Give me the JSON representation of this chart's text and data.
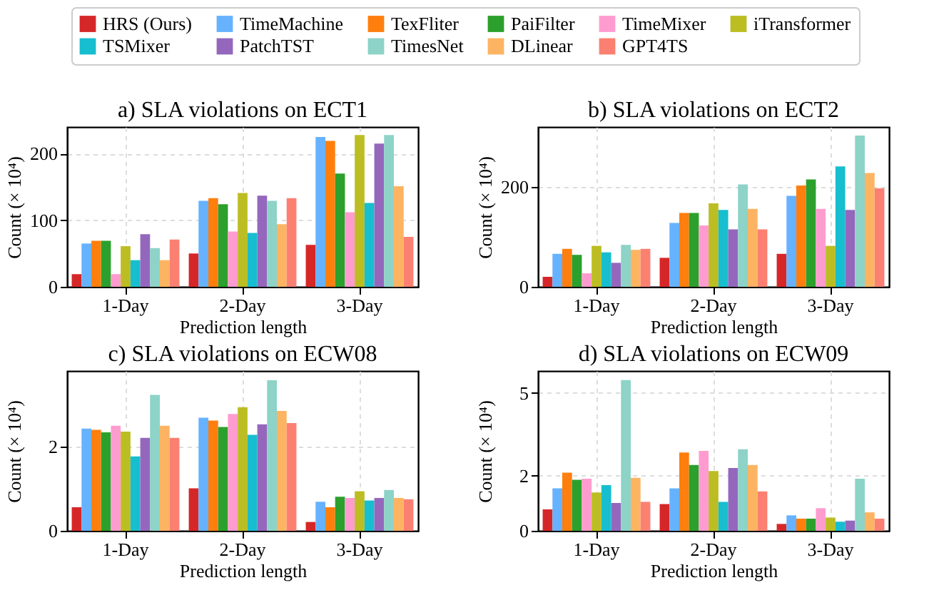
{
  "chart_data": [
    {
      "type": "bar",
      "title": "a) SLA violations on ECT1",
      "xlabel": "Prediction length",
      "ylabel": "Count (× 10⁴)",
      "categories": [
        "1-Day",
        "2-Day",
        "3-Day"
      ],
      "ylim": [
        0,
        240
      ],
      "yticks": [
        0,
        100,
        200
      ],
      "grid": true,
      "legend": "top",
      "series": [
        {
          "name": "HRS (Ours)",
          "color": "#d62728",
          "values": [
            19,
            50,
            63
          ]
        },
        {
          "name": "TimeMachine",
          "color": "#66b2ff",
          "values": [
            65,
            129,
            225
          ]
        },
        {
          "name": "TexFliter",
          "color": "#ff7f0e",
          "values": [
            69,
            133,
            219
          ]
        },
        {
          "name": "PaiFilter",
          "color": "#2ca02c",
          "values": [
            69,
            124,
            170
          ]
        },
        {
          "name": "TimeMixer",
          "color": "#ff9ccf",
          "values": [
            19,
            83,
            112
          ]
        },
        {
          "name": "iTransformer",
          "color": "#bcbd22",
          "values": [
            61,
            141,
            228
          ]
        },
        {
          "name": "TSMixer",
          "color": "#17becf",
          "values": [
            40,
            81,
            126
          ]
        },
        {
          "name": "PatchTST",
          "color": "#9467bd",
          "values": [
            79,
            137,
            215
          ]
        },
        {
          "name": "TimesNet",
          "color": "#8dd3c7",
          "values": [
            58,
            129,
            228
          ]
        },
        {
          "name": "DLinear",
          "color": "#fdb462",
          "values": [
            40,
            94,
            151
          ]
        },
        {
          "name": "GPT4TS",
          "color": "#fb8072",
          "values": [
            71,
            133,
            75
          ]
        }
      ]
    },
    {
      "type": "bar",
      "title": "b) SLA violations on ECT2",
      "xlabel": "Prediction length",
      "ylabel": "Count (× 10⁴)",
      "categories": [
        "1-Day",
        "2-Day",
        "3-Day"
      ],
      "ylim": [
        0,
        320
      ],
      "yticks": [
        0,
        200
      ],
      "grid": true,
      "series": [
        {
          "color": "#d62728",
          "values": [
            20,
            58,
            66
          ]
        },
        {
          "color": "#66b2ff",
          "values": [
            66,
            128,
            182
          ]
        },
        {
          "color": "#ff7f0e",
          "values": [
            76,
            148,
            203
          ]
        },
        {
          "color": "#2ca02c",
          "values": [
            64,
            148,
            215
          ]
        },
        {
          "color": "#ff9ccf",
          "values": [
            27,
            123,
            156
          ]
        },
        {
          "color": "#bcbd22",
          "values": [
            82,
            167,
            82
          ]
        },
        {
          "color": "#17becf",
          "values": [
            69,
            154,
            241
          ]
        },
        {
          "color": "#9467bd",
          "values": [
            48,
            115,
            154
          ]
        },
        {
          "color": "#8dd3c7",
          "values": [
            84,
            205,
            303
          ]
        },
        {
          "color": "#fdb462",
          "values": [
            74,
            156,
            228
          ]
        },
        {
          "color": "#fb8072",
          "values": [
            76,
            115,
            197
          ]
        }
      ]
    },
    {
      "type": "bar",
      "title": "c) SLA violations on ECW08",
      "xlabel": "Prediction length",
      "ylabel": "Count (× 10⁴)",
      "categories": [
        "1-Day",
        "2-Day",
        "3-Day"
      ],
      "ylim": [
        0,
        3.8
      ],
      "yticks": [
        0,
        2
      ],
      "grid": true,
      "series": [
        {
          "color": "#d62728",
          "values": [
            0.56,
            1.01,
            0.21
          ]
        },
        {
          "color": "#66b2ff",
          "values": [
            2.43,
            2.69,
            0.69
          ]
        },
        {
          "color": "#ff7f0e",
          "values": [
            2.4,
            2.62,
            0.56
          ]
        },
        {
          "color": "#2ca02c",
          "values": [
            2.34,
            2.47,
            0.81
          ]
        },
        {
          "color": "#ff9ccf",
          "values": [
            2.5,
            2.78,
            0.78
          ]
        },
        {
          "color": "#bcbd22",
          "values": [
            2.36,
            2.94,
            0.94
          ]
        },
        {
          "color": "#17becf",
          "values": [
            1.77,
            2.28,
            0.72
          ]
        },
        {
          "color": "#9467bd",
          "values": [
            2.21,
            2.53,
            0.78
          ]
        },
        {
          "color": "#8dd3c7",
          "values": [
            3.23,
            3.58,
            0.97
          ]
        },
        {
          "color": "#fdb462",
          "values": [
            2.5,
            2.85,
            0.78
          ]
        },
        {
          "color": "#fb8072",
          "values": [
            2.21,
            2.56,
            0.75
          ]
        }
      ]
    },
    {
      "type": "bar",
      "title": "d) SLA violations on ECW09",
      "xlabel": "Prediction length",
      "ylabel": "Count (× 10⁴)",
      "categories": [
        "1-Day",
        "2-Day",
        "3-Day"
      ],
      "ylim": [
        0,
        5.8
      ],
      "yticks": [
        0,
        2,
        5
      ],
      "grid": true,
      "series": [
        {
          "color": "#d62728",
          "values": [
            0.78,
            0.97,
            0.25
          ]
        },
        {
          "color": "#66b2ff",
          "values": [
            1.54,
            1.54,
            0.56
          ]
        },
        {
          "color": "#ff7f0e",
          "values": [
            2.11,
            2.84,
            0.44
          ]
        },
        {
          "color": "#2ca02c",
          "values": [
            1.85,
            2.39,
            0.44
          ]
        },
        {
          "color": "#ff9ccf",
          "values": [
            1.89,
            2.9,
            0.82
          ]
        },
        {
          "color": "#bcbd22",
          "values": [
            1.39,
            2.17,
            0.48
          ]
        },
        {
          "color": "#17becf",
          "values": [
            1.66,
            1.05,
            0.33
          ]
        },
        {
          "color": "#9467bd",
          "values": [
            1.01,
            2.28,
            0.37
          ]
        },
        {
          "color": "#8dd3c7",
          "values": [
            5.47,
            2.96,
            1.89
          ]
        },
        {
          "color": "#fdb462",
          "values": [
            1.92,
            2.39,
            0.67
          ]
        },
        {
          "color": "#fb8072",
          "values": [
            1.05,
            1.43,
            0.44
          ]
        }
      ]
    }
  ]
}
